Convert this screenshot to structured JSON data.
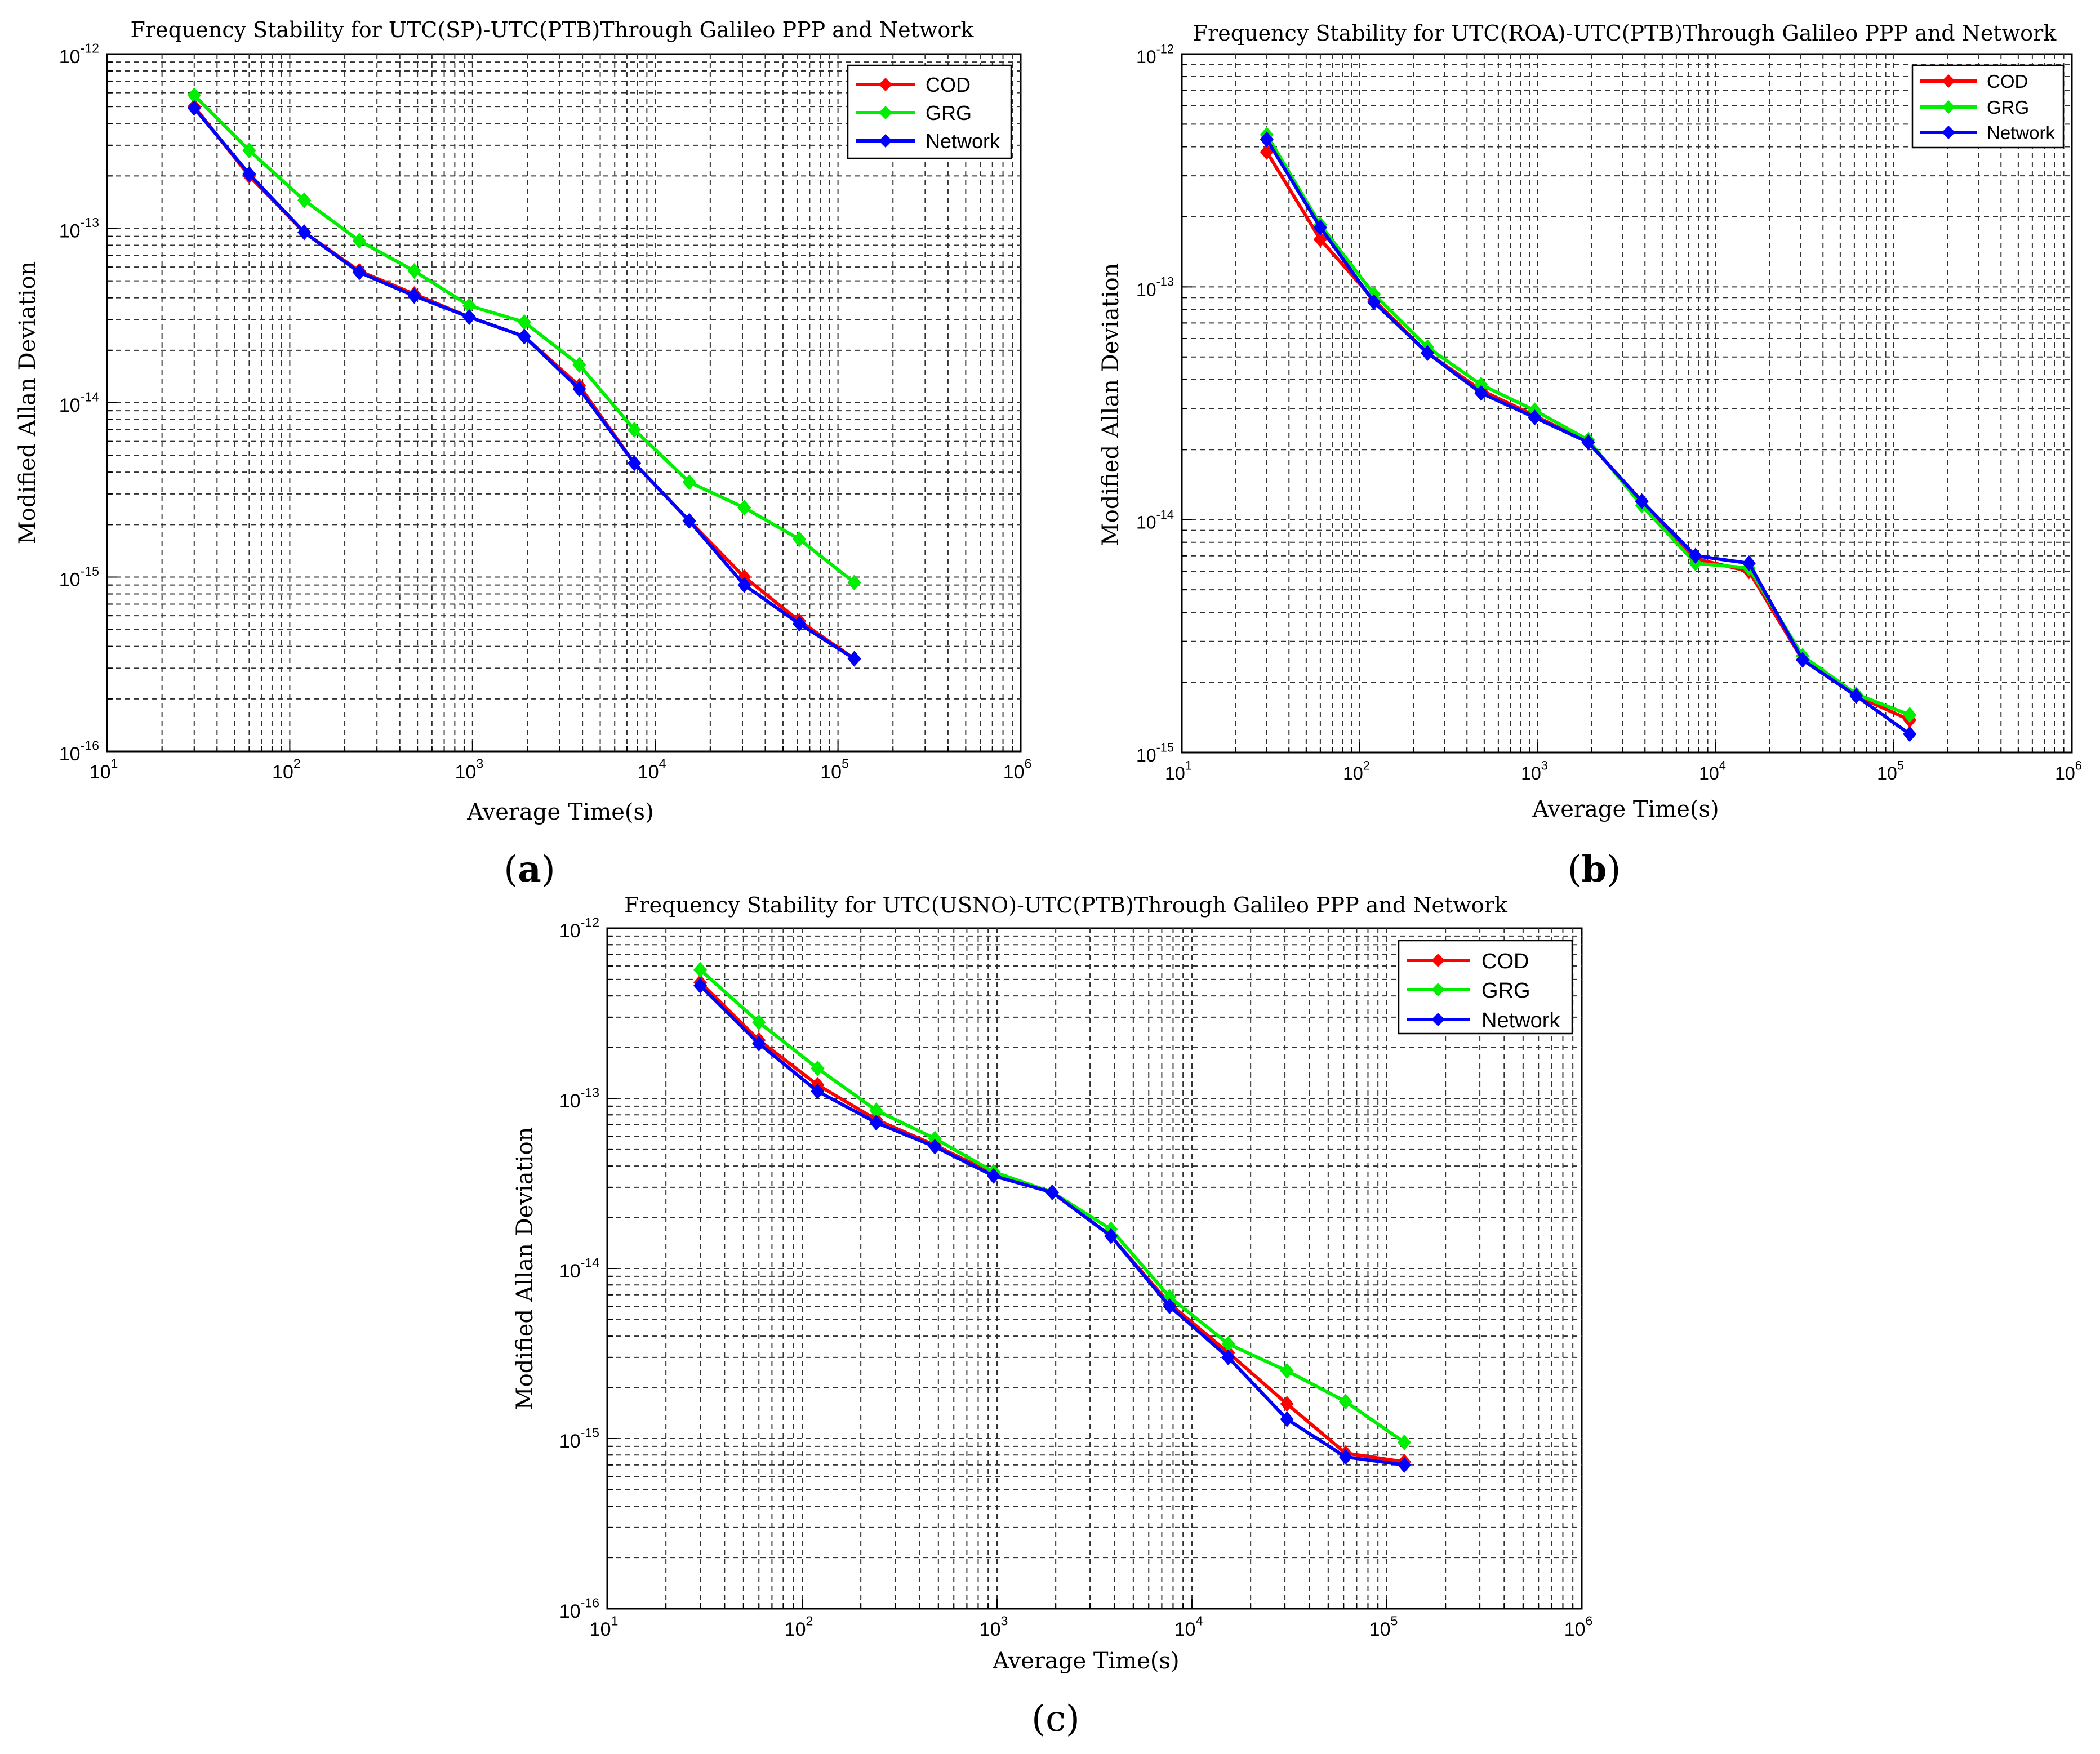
{
  "colors": {
    "COD": "#ff0000",
    "GRG": "#00ee00",
    "Network": "#0000ff",
    "grid": "#333333"
  },
  "chart_data": [
    {
      "type": "line",
      "panel_label": "a",
      "title": "Frequency Stability for UTC(SP)-UTC(PTB)Through Galileo PPP and Network",
      "xlabel": "Average Time(s)",
      "ylabel": "Modified Allan Deviation",
      "xscale": "log",
      "yscale": "log",
      "xlim": [
        10,
        1000000
      ],
      "ylim": [
        1e-16,
        1e-12
      ],
      "xticks": [
        {
          "b": "10",
          "e": "1"
        },
        {
          "b": "10",
          "e": "2"
        },
        {
          "b": "10",
          "e": "3"
        },
        {
          "b": "10",
          "e": "4"
        },
        {
          "b": "10",
          "e": "5"
        },
        {
          "b": "10",
          "e": "6"
        }
      ],
      "yticks": [
        {
          "b": "10",
          "e": "-16"
        },
        {
          "b": "10",
          "e": "-15"
        },
        {
          "b": "10",
          "e": "-14"
        },
        {
          "b": "10",
          "e": "-13"
        },
        {
          "b": "10",
          "e": "-12"
        }
      ],
      "legend_position": "top-right",
      "grid": true,
      "x": [
        30,
        60,
        120,
        240,
        480,
        960,
        1920,
        3840,
        7680,
        15360,
        30720,
        61440,
        122880
      ],
      "series": [
        {
          "name": "COD",
          "values": [
            5e-13,
            2e-13,
            9.5e-14,
            5.7e-14,
            4.2e-14,
            3.1e-14,
            2.4e-14,
            1.25e-14,
            4.5e-15,
            2.1e-15,
            1e-15,
            5.6e-16,
            3.4e-16
          ]
        },
        {
          "name": "GRG",
          "values": [
            5.8e-13,
            2.8e-13,
            1.45e-13,
            8.5e-14,
            5.7e-14,
            3.6e-14,
            2.9e-14,
            1.65e-14,
            7e-15,
            3.5e-15,
            2.5e-15,
            1.65e-15,
            9.3e-16
          ]
        },
        {
          "name": "Network",
          "values": [
            4.9e-13,
            2.05e-13,
            9.5e-14,
            5.6e-14,
            4.1e-14,
            3.1e-14,
            2.4e-14,
            1.2e-14,
            4.5e-15,
            2.1e-15,
            9e-16,
            5.4e-16,
            3.4e-16
          ]
        }
      ]
    },
    {
      "type": "line",
      "panel_label": "b",
      "title": "Frequency Stability for UTC(ROA)-UTC(PTB)Through Galileo PPP and Network",
      "xlabel": "Average Time(s)",
      "ylabel": "Modified Allan Deviation",
      "xscale": "log",
      "yscale": "log",
      "xlim": [
        10,
        1000000
      ],
      "ylim": [
        1e-15,
        1e-12
      ],
      "xticks": [
        {
          "b": "10",
          "e": "1"
        },
        {
          "b": "10",
          "e": "2"
        },
        {
          "b": "10",
          "e": "3"
        },
        {
          "b": "10",
          "e": "4"
        },
        {
          "b": "10",
          "e": "5"
        },
        {
          "b": "10",
          "e": "6"
        }
      ],
      "yticks": [
        {
          "b": "10",
          "e": "-15"
        },
        {
          "b": "10",
          "e": "-14"
        },
        {
          "b": "10",
          "e": "-13"
        },
        {
          "b": "10",
          "e": "-12"
        }
      ],
      "legend_position": "top-right",
      "grid": true,
      "x": [
        30,
        60,
        120,
        240,
        480,
        960,
        1920,
        3840,
        7680,
        15360,
        30720,
        61440,
        122880
      ],
      "series": [
        {
          "name": "COD",
          "values": [
            3.8e-13,
            1.6e-13,
            8.8e-14,
            5.2e-14,
            3.6e-14,
            2.8e-14,
            2.15e-14,
            1.2e-14,
            6.8e-15,
            6e-15,
            2.5e-15,
            1.75e-15,
            1.38e-15
          ]
        },
        {
          "name": "GRG",
          "values": [
            4.5e-13,
            1.85e-13,
            9.3e-14,
            5.5e-14,
            3.8e-14,
            2.95e-14,
            2.2e-14,
            1.15e-14,
            6.5e-15,
            6.2e-15,
            2.6e-15,
            1.78e-15,
            1.45e-15
          ]
        },
        {
          "name": "Network",
          "values": [
            4.3e-13,
            1.8e-13,
            8.6e-14,
            5.2e-14,
            3.5e-14,
            2.75e-14,
            2.15e-14,
            1.2e-14,
            7e-15,
            6.5e-15,
            2.5e-15,
            1.75e-15,
            1.2e-15
          ]
        }
      ]
    },
    {
      "type": "line",
      "panel_label": "c",
      "title": "Frequency Stability for UTC(USNO)-UTC(PTB)Through Galileo PPP and Network",
      "xlabel": "Average Time(s)",
      "ylabel": "Modified Allan Deviation",
      "xscale": "log",
      "yscale": "log",
      "xlim": [
        10,
        1000000
      ],
      "ylim": [
        1e-16,
        1e-12
      ],
      "xticks": [
        {
          "b": "10",
          "e": "1"
        },
        {
          "b": "10",
          "e": "2"
        },
        {
          "b": "10",
          "e": "3"
        },
        {
          "b": "10",
          "e": "4"
        },
        {
          "b": "10",
          "e": "5"
        },
        {
          "b": "10",
          "e": "6"
        }
      ],
      "yticks": [
        {
          "b": "10",
          "e": "-16"
        },
        {
          "b": "10",
          "e": "-15"
        },
        {
          "b": "10",
          "e": "-14"
        },
        {
          "b": "10",
          "e": "-13"
        },
        {
          "b": "10",
          "e": "-12"
        }
      ],
      "legend_position": "top-right",
      "grid": true,
      "x": [
        30,
        60,
        120,
        240,
        480,
        960,
        1920,
        3840,
        7680,
        15360,
        30720,
        61440,
        122880
      ],
      "series": [
        {
          "name": "COD",
          "values": [
            4.8e-13,
            2.2e-13,
            1.2e-13,
            7.5e-14,
            5.3e-14,
            3.6e-14,
            2.8e-14,
            1.55e-14,
            6.2e-15,
            3.2e-15,
            1.6e-15,
            8.2e-16,
            7.3e-16
          ]
        },
        {
          "name": "GRG",
          "values": [
            5.7e-13,
            2.8e-13,
            1.5e-13,
            8.5e-14,
            5.8e-14,
            3.7e-14,
            2.8e-14,
            1.7e-14,
            6.8e-15,
            3.6e-15,
            2.5e-15,
            1.65e-15,
            9.5e-16
          ]
        },
        {
          "name": "Network",
          "values": [
            4.6e-13,
            2.1e-13,
            1.1e-13,
            7.2e-14,
            5.2e-14,
            3.5e-14,
            2.8e-14,
            1.55e-14,
            6e-15,
            3e-15,
            1.3e-15,
            7.8e-16,
            7e-16
          ]
        }
      ]
    }
  ]
}
